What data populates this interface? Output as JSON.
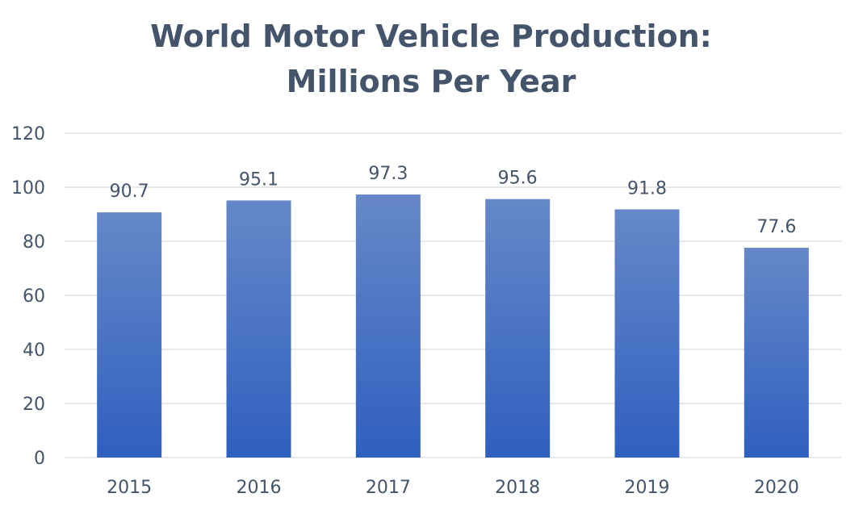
{
  "chart_data": {
    "type": "bar",
    "title_lines": [
      "World Motor Vehicle Production:",
      "Millions Per Year"
    ],
    "categories": [
      "2015",
      "2016",
      "2017",
      "2018",
      "2019",
      "2020"
    ],
    "values": [
      90.7,
      95.1,
      97.3,
      95.6,
      91.8,
      77.6
    ],
    "data_labels": [
      "90.7",
      "95.1",
      "97.3",
      "95.6",
      "91.8",
      "77.6"
    ],
    "xlabel": "",
    "ylabel": "",
    "ylim": [
      0,
      120
    ],
    "yticks": [
      0,
      20,
      40,
      60,
      80,
      100,
      120
    ],
    "grid": true,
    "legend": "none",
    "colors": {
      "bar_top": "#6688c8",
      "bar_bottom": "#2f5fbf",
      "title": "#44546a",
      "text": "#44546a",
      "grid": "#d9d9d9"
    }
  }
}
